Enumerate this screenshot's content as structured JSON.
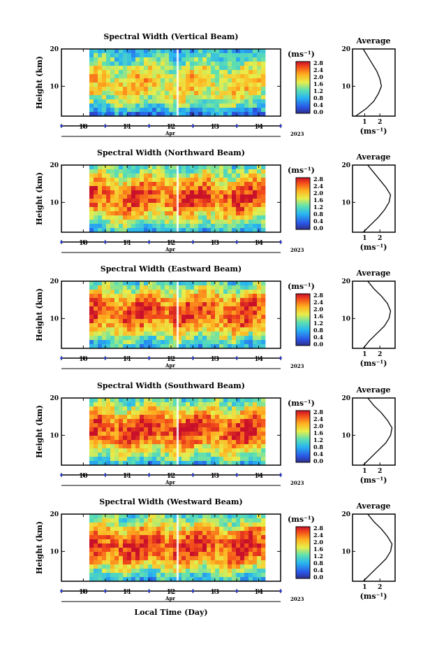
{
  "figure": {
    "xlabel": "Local Time (Day)"
  },
  "chart_data": [
    {
      "type": "heatmap",
      "title": "Spectral Width (Vertical Beam)",
      "ylabel": "Height (km)",
      "yticks": [
        "20",
        "10"
      ],
      "xticks": [
        "10",
        "11",
        "12",
        "13",
        "14"
      ],
      "month": "Apr",
      "year": "2023",
      "colorbar": {
        "unit": "(ms⁻¹)",
        "ticks": [
          "2.8",
          "2.4",
          "2.0",
          "1.6",
          "1.2",
          "0.8",
          "0.4",
          "0.0"
        ]
      },
      "profile": {
        "title": "Average",
        "xlabel": "(ms⁻¹)",
        "xticks": [
          "1",
          "2"
        ],
        "yticks": [
          "20",
          "10"
        ],
        "height_km": [
          2,
          4,
          6,
          8,
          10,
          12,
          14,
          16,
          18,
          20
        ],
        "value": [
          0.4,
          1.1,
          1.6,
          1.9,
          2.1,
          2.0,
          1.8,
          1.5,
          1.2,
          0.9
        ]
      }
    },
    {
      "type": "heatmap",
      "title": "Spectral Width (Northward Beam)",
      "ylabel": "Height (km)",
      "yticks": [
        "20",
        "10"
      ],
      "xticks": [
        "10",
        "11",
        "12",
        "13",
        "14"
      ],
      "month": "Apr",
      "year": "2023",
      "colorbar": {
        "unit": "(ms⁻¹)",
        "ticks": [
          "2.8",
          "2.4",
          "2.0",
          "1.6",
          "1.2",
          "0.8",
          "0.4",
          "0.0"
        ]
      },
      "profile": {
        "title": "Average",
        "xlabel": "(ms⁻¹)",
        "xticks": [
          "1",
          "2"
        ],
        "yticks": [
          "20",
          "10"
        ],
        "height_km": [
          2,
          4,
          6,
          8,
          10,
          12,
          14,
          16,
          18,
          20
        ],
        "value": [
          0.9,
          1.4,
          1.9,
          2.3,
          2.6,
          2.7,
          2.4,
          2.0,
          1.6,
          1.2
        ]
      }
    },
    {
      "type": "heatmap",
      "title": "Spectral Width (Eastward Beam)",
      "ylabel": "Height (km)",
      "yticks": [
        "20",
        "10"
      ],
      "xticks": [
        "10",
        "11",
        "12",
        "13",
        "14"
      ],
      "month": "Apr",
      "year": "2023",
      "colorbar": {
        "unit": "(ms⁻¹)",
        "ticks": [
          "2.8",
          "2.4",
          "2.0",
          "1.6",
          "1.2",
          "0.8",
          "0.4",
          "0.0"
        ]
      },
      "profile": {
        "title": "Average",
        "xlabel": "(ms⁻¹)",
        "xticks": [
          "1",
          "2"
        ],
        "yticks": [
          "20",
          "10"
        ],
        "height_km": [
          2,
          4,
          6,
          8,
          10,
          12,
          14,
          16,
          18,
          20
        ],
        "value": [
          0.9,
          1.3,
          1.8,
          2.3,
          2.6,
          2.7,
          2.5,
          2.1,
          1.6,
          1.2
        ]
      }
    },
    {
      "type": "heatmap",
      "title": "Spectral Width (Southward Beam)",
      "ylabel": "Height (km)",
      "yticks": [
        "20",
        "10"
      ],
      "xticks": [
        "10",
        "11",
        "12",
        "13",
        "14"
      ],
      "month": "Apr",
      "year": "2023",
      "colorbar": {
        "unit": "(ms⁻¹)",
        "ticks": [
          "2.8",
          "2.4",
          "2.0",
          "1.6",
          "1.2",
          "0.8",
          "0.4",
          "0.0"
        ]
      },
      "profile": {
        "title": "Average",
        "xlabel": "(ms⁻¹)",
        "xticks": [
          "1",
          "2"
        ],
        "yticks": [
          "20",
          "10"
        ],
        "height_km": [
          2,
          4,
          6,
          8,
          10,
          12,
          14,
          16,
          18,
          20
        ],
        "value": [
          0.9,
          1.4,
          1.9,
          2.4,
          2.7,
          2.8,
          2.5,
          2.1,
          1.6,
          1.2
        ]
      }
    },
    {
      "type": "heatmap",
      "title": "Spectral Width (Westward Beam)",
      "ylabel": "Height (km)",
      "yticks": [
        "20",
        "10"
      ],
      "xticks": [
        "10",
        "11",
        "12",
        "13",
        "14"
      ],
      "month": "Apr",
      "year": "2023",
      "colorbar": {
        "unit": "(ms⁻¹)",
        "ticks": [
          "2.8",
          "2.4",
          "2.0",
          "1.6",
          "1.2",
          "0.8",
          "0.4",
          "0.0"
        ]
      },
      "profile": {
        "title": "Average",
        "xlabel": "(ms⁻¹)",
        "xticks": [
          "1",
          "2"
        ],
        "yticks": [
          "20",
          "10"
        ],
        "height_km": [
          2,
          4,
          6,
          8,
          10,
          12,
          14,
          16,
          18,
          20
        ],
        "value": [
          0.9,
          1.4,
          1.9,
          2.4,
          2.7,
          2.8,
          2.5,
          2.1,
          1.6,
          1.2
        ]
      }
    }
  ]
}
